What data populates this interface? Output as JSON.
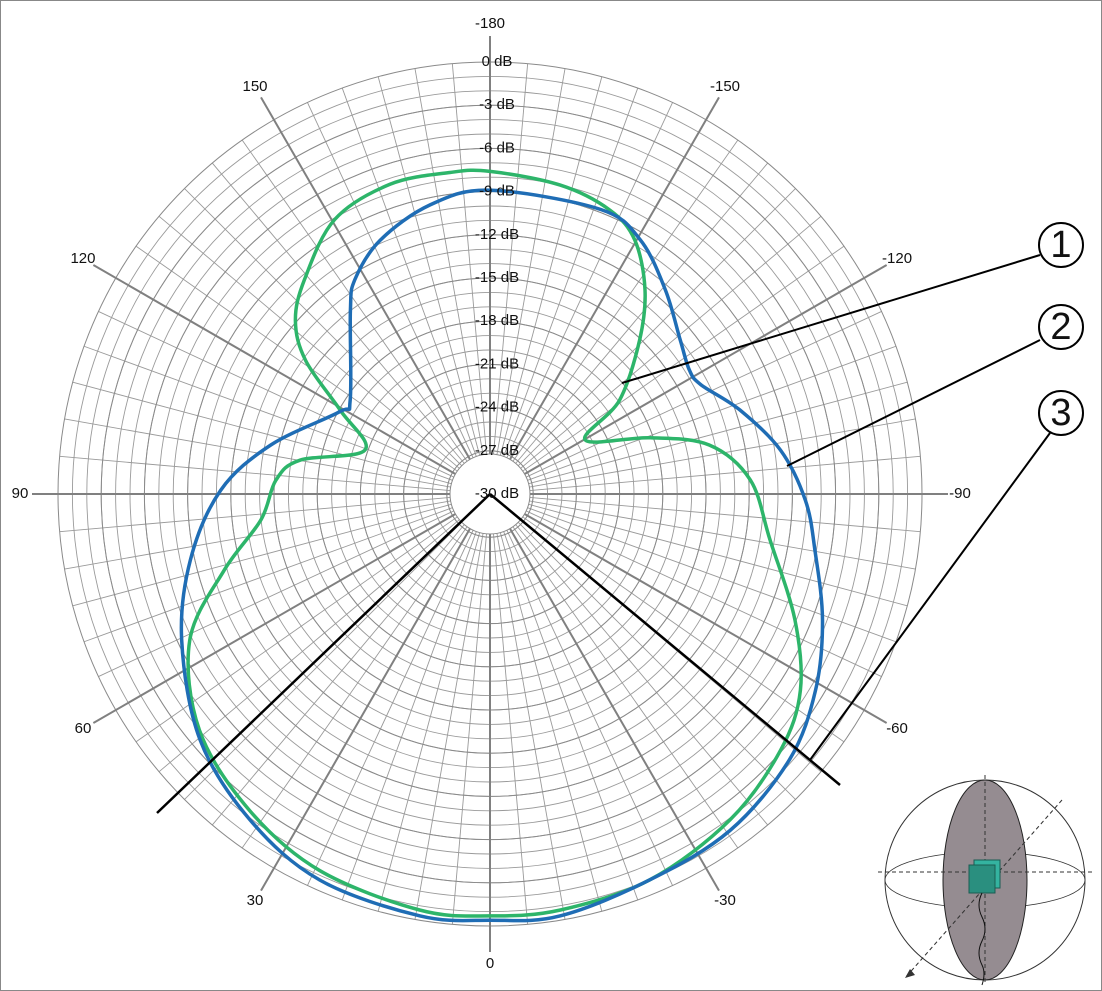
{
  "chart_data": {
    "type": "polar",
    "xticks": [
      -180,
      -150,
      -120,
      -90,
      -60,
      -30,
      0,
      30,
      60,
      90,
      120,
      150
    ],
    "ylim": [
      -30,
      0
    ],
    "yticks": [
      {
        "value": 0,
        "label": "0 dB"
      },
      {
        "value": -3,
        "label": "-3 dB"
      },
      {
        "value": -6,
        "label": "-6 dB"
      },
      {
        "value": -9,
        "label": "-9 dB"
      },
      {
        "value": -12,
        "label": "-12 dB"
      },
      {
        "value": -15,
        "label": "-15 dB"
      },
      {
        "value": -18,
        "label": "-18 dB"
      },
      {
        "value": -21,
        "label": "-21 dB"
      },
      {
        "value": -24,
        "label": "-24 dB"
      },
      {
        "value": -27,
        "label": "-27 dB"
      },
      {
        "value": -30,
        "label": "-30 dB"
      }
    ],
    "grid": true,
    "series": [
      {
        "color": "#2db56a",
        "x": [
          180,
          -167.2,
          -157.1,
          -150.3,
          -142.8,
          -135.8,
          -125.9,
          -119.6,
          -109.3,
          -102.6,
          -93.1,
          -80.7,
          -67.6,
          -57.7,
          -48.6,
          -36.4,
          -22.5,
          -9.6,
          0,
          9.6,
          24.3,
          37.2,
          50.9,
          64,
          74,
          83.6,
          93.7,
          100.1,
          109.4,
          119.2,
          125.9,
          131.7,
          139.2,
          150.5,
          162.1,
          172.9
        ],
        "values": [
          -7.6,
          -8.0,
          -8.6,
          -9.7,
          -12.2,
          -15.1,
          -18.9,
          -22.4,
          -18.2,
          -14.4,
          -11.9,
          -10.3,
          -7.1,
          -4.5,
          -3.1,
          -1.9,
          -1.0,
          -0.7,
          -0.7,
          -0.7,
          -1.3,
          -2.4,
          -4.0,
          -6.8,
          -10.8,
          -14.0,
          -15.1,
          -16.6,
          -20.8,
          -18.1,
          -14.2,
          -11.9,
          -10.3,
          -8.1,
          -7.4,
          -7.5
        ]
      },
      {
        "color": "#1f6db5",
        "x": [
          180,
          -158.8,
          -149.4,
          -139.4,
          -129,
          -121.8,
          -117.4,
          -108.6,
          -98.6,
          -88.9,
          -80.2,
          -69.2,
          -58.9,
          -48.4,
          -35.5,
          -22.5,
          -9.4,
          0,
          9.4,
          23.8,
          36.4,
          49.7,
          64.6,
          77.6,
          90.8,
          102.6,
          118.7,
          123.9,
          142.7,
          147.8,
          156.6,
          168.3
        ],
        "values": [
          -8.9,
          -8.8,
          -9.5,
          -11.3,
          -13.0,
          -13.7,
          -13.5,
          -11.7,
          -9.6,
          -8.1,
          -7.1,
          -5.3,
          -3.6,
          -2.2,
          -1.3,
          -1.0,
          -0.3,
          -0.4,
          -0.3,
          -0.7,
          -1.9,
          -3.6,
          -6.3,
          -8.7,
          -11.3,
          -14.4,
          -18.1,
          -18.3,
          -14.0,
          -12.4,
          -10.8,
          -9.5
        ]
      }
    ],
    "annotations": [
      "1",
      "2",
      "3"
    ]
  }
}
